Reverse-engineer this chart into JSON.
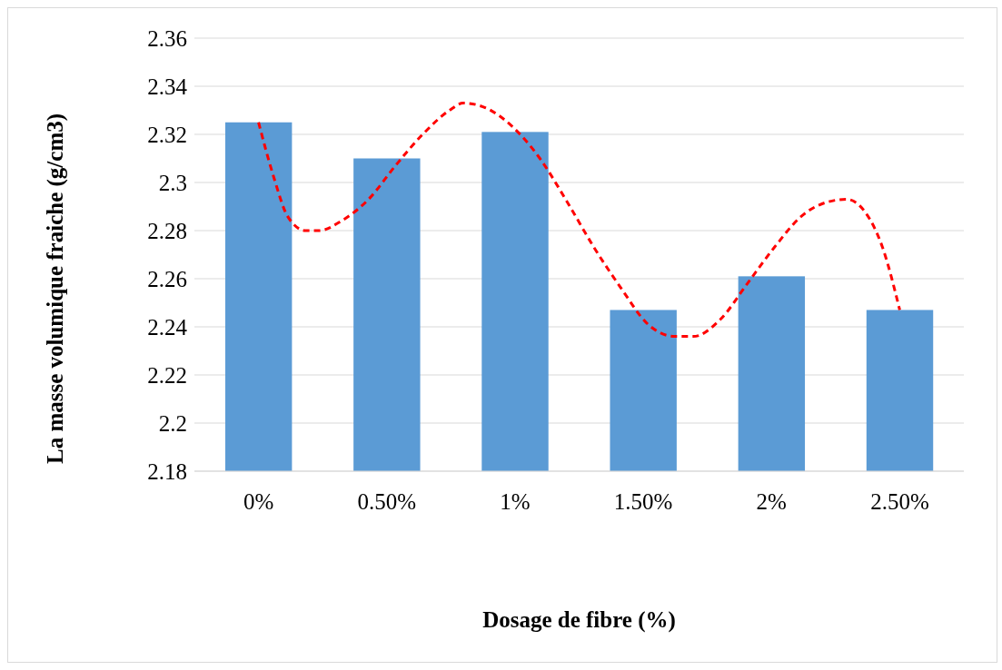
{
  "chart_data": {
    "type": "bar",
    "xlabel": "Dosage de fibre (%)",
    "ylabel": "La masse volumique fraiche (g/cm3)",
    "x": [
      0,
      0.5,
      1,
      1.5,
      2,
      2.5
    ],
    "xlim": [
      -0.25,
      2.75
    ],
    "xticks": [
      {
        "value": 0,
        "label": "0%"
      },
      {
        "value": 0.5,
        "label": "0.50%"
      },
      {
        "value": 1,
        "label": "1%"
      },
      {
        "value": 1.5,
        "label": "1.50%"
      },
      {
        "value": 2,
        "label": "2%"
      },
      {
        "value": 2.5,
        "label": "2.50%"
      }
    ],
    "ylim": [
      2.18,
      2.36
    ],
    "yticks": [
      2.18,
      2.2,
      2.22,
      2.24,
      2.26,
      2.28,
      2.3,
      2.32,
      2.34,
      2.36
    ],
    "grid": "y",
    "legend": false,
    "series": [
      {
        "color": "#5b9bd5",
        "values": [
          2.325,
          2.31,
          2.321,
          2.247,
          2.261,
          2.247
        ]
      },
      {
        "type": "line",
        "color": "#ff0000",
        "line_style": "dashed",
        "x": [
          0,
          0.06,
          0.113,
          0.183,
          0.236,
          0.323,
          0.429,
          0.534,
          0.64,
          0.745,
          0.798,
          0.886,
          0.992,
          1.097,
          1.203,
          1.308,
          1.414,
          1.519,
          1.624,
          1.695,
          1.8,
          1.906,
          2.011,
          2.117,
          2.222,
          2.293,
          2.363,
          2.433,
          2.5
        ],
        "values": [
          2.325,
          2.302,
          2.286,
          2.28,
          2.28,
          2.284,
          2.293,
          2.307,
          2.32,
          2.33,
          2.333,
          2.331,
          2.323,
          2.31,
          2.292,
          2.273,
          2.256,
          2.241,
          2.236,
          2.236,
          2.243,
          2.258,
          2.273,
          2.286,
          2.292,
          2.293,
          2.288,
          2.273,
          2.247
        ]
      }
    ]
  }
}
